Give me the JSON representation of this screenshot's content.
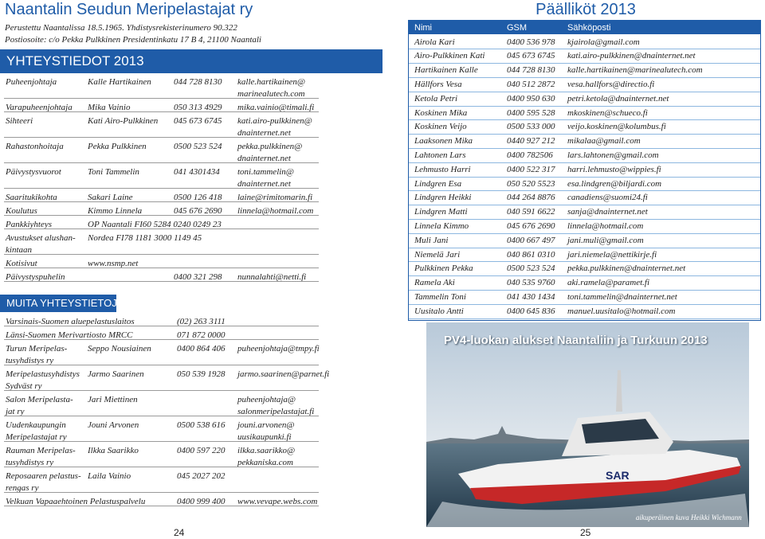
{
  "left": {
    "title": "Naantalin Seudun Meripelastajat ry",
    "founded": "Perustettu Naantalissa 18.5.1965. Yhdistysrekisterinumero 90.322",
    "address": "Postiosoite: c/o Pekka Pulkkinen Presidentinkatu 17 B 4, 21100 Naantali",
    "section_title": "YHTEYSTIEDOT 2013",
    "contacts": [
      {
        "role": [
          "Puheenjohtaja"
        ],
        "name": [
          "Kalle Hartikainen"
        ],
        "phone": [
          "044 728 8130"
        ],
        "email": [
          "kalle.hartikainen@",
          "marinealutech.com"
        ]
      },
      {
        "role": [
          "Varapuheenjohtaja"
        ],
        "name": [
          "Mika Vainio"
        ],
        "phone": [
          "050 313 4929"
        ],
        "email": [
          "mika.vainio@timali.fi"
        ]
      },
      {
        "role": [
          "Sihteeri"
        ],
        "name": [
          "Kati Airo-Pulkkinen"
        ],
        "phone": [
          "045 673 6745"
        ],
        "email": [
          "kati.airo-pulkkinen@",
          "dnainternet.net"
        ]
      },
      {
        "role": [
          "Rahastonhoitaja"
        ],
        "name": [
          "Pekka Pulkkinen"
        ],
        "phone": [
          "0500 523 524"
        ],
        "email": [
          "pekka.pulkkinen@",
          "dnainternet.net"
        ]
      },
      {
        "role": [
          "Päivystysvuorot"
        ],
        "name": [
          "Toni Tammelin"
        ],
        "phone": [
          "041 4301434"
        ],
        "email": [
          "toni.tammelin@",
          "dnainternet.net"
        ]
      },
      {
        "role": [
          "Saaritukikohta"
        ],
        "name": [
          "Sakari Laine"
        ],
        "phone": [
          "0500 126 418"
        ],
        "email": [
          "laine@rimitomarin.fi"
        ]
      },
      {
        "role": [
          "Koulutus"
        ],
        "name": [
          "Kimmo Linnela"
        ],
        "phone": [
          "045 676 2690"
        ],
        "email": [
          "linnela@hotmail.com"
        ]
      },
      {
        "role": [
          "Pankkiyhteys"
        ],
        "name": [
          "OP Naantali  FI60 5284 0240 0249  23"
        ]
      },
      {
        "role": [
          "Avustukset alushan-",
          "kintaan"
        ],
        "name": [
          "Nordea FI78 1181 3000 1149 45"
        ]
      },
      {
        "role": [
          "Kotisivut"
        ],
        "name": [
          "www.nsmp.net"
        ]
      },
      {
        "role": [
          "Päivystyspuhelin"
        ],
        "phone": [
          "0400 321 298"
        ],
        "email": [
          "nunnalahti@netti.fi"
        ]
      }
    ],
    "other_title": "MUITA YHTEYSTIETOJA",
    "others": [
      {
        "role": [
          "Varsinais-Suomen aluepelastuslaitos"
        ],
        "phone": [
          "(02) 263 3111"
        ]
      },
      {
        "role": [
          "Länsi-Suomen Merivartiosto MRCC"
        ],
        "phone": [
          "071 872 0000"
        ]
      },
      {
        "role": [
          "Turun Meripelas-",
          "tusyhdistys ry"
        ],
        "name": [
          "Seppo Nousiainen"
        ],
        "phone": [
          "0400 864 406"
        ],
        "email": [
          "puheenjohtaja@tmpy.fi"
        ]
      },
      {
        "role": [
          "Meripelastusyhdistys",
          "Sydväst ry"
        ],
        "name": [
          "Jarmo Saarinen"
        ],
        "phone": [
          "050 539 1928"
        ],
        "email": [
          "jarmo.saarinen@parnet.fi"
        ]
      },
      {
        "role": [
          "Salon Meripelasta-",
          "jat ry"
        ],
        "name": [
          "Jari Miettinen"
        ],
        "email": [
          "puheenjohtaja@",
          "salonmeripelastajat.fi"
        ]
      },
      {
        "role": [
          "Uudenkaupungin",
          "Meripelastajat ry"
        ],
        "name": [
          "Jouni Arvonen"
        ],
        "phone": [
          "0500 538 616"
        ],
        "email": [
          "jouni.arvonen@",
          "uusikaupunki.fi"
        ]
      },
      {
        "role": [
          "Rauman Meripelas-",
          "tusyhdistys ry"
        ],
        "name": [
          "Ilkka Saarikko"
        ],
        "phone": [
          "0400 597 220"
        ],
        "email": [
          "ilkka.saarikko@",
          "pekkaniska.com"
        ]
      },
      {
        "role": [
          "Reposaaren pelastus-",
          "rengas ry"
        ],
        "name": [
          "Laila Vainio"
        ],
        "phone": [
          "045 2027 202"
        ]
      },
      {
        "role": [
          "Velkuan Vapaaehtoinen Pelastuspalvelu"
        ],
        "phone": [
          "0400 999 400"
        ],
        "email": [
          "www.vevape.webs.com"
        ]
      }
    ],
    "page_number": "24"
  },
  "right": {
    "title": "Päälliköt 2013",
    "table": {
      "header": [
        "Nimi",
        "GSM",
        "Sähköposti"
      ],
      "rows": [
        [
          "Airola Kari",
          "0400 536 978",
          "kjairola@gmail.com"
        ],
        [
          "Airo-Pulkkinen Kati",
          "045 673 6745",
          "kati.airo-pulkkinen@dnainternet.net"
        ],
        [
          "Hartikainen Kalle",
          "044 728 8130",
          "kalle.hartikainen@marinealutech.com"
        ],
        [
          "Hällfors Vesa",
          "040 512 2872",
          "vesa.hallfors@directio.fi"
        ],
        [
          "Ketola Petri",
          "0400 950 630",
          "petri.ketola@dnainternet.net"
        ],
        [
          "Koskinen Mika",
          "0400 595 528",
          "mkoskinen@schueco.fi"
        ],
        [
          "Koskinen Veijo",
          "0500 533 000",
          "veijo.koskinen@kolumbus.fi"
        ],
        [
          "Laaksonen Mika",
          "0440 927 212",
          "mikalaa@gmail.com"
        ],
        [
          "Lahtonen Lars",
          "0400 782506",
          "lars.lahtonen@gmail.com"
        ],
        [
          "Lehmusto Harri",
          "0400 522 317",
          "harri.lehmusto@wippies.fi"
        ],
        [
          "Lindgren Esa",
          "050 520 5523",
          "esa.lindgren@biljardi.com"
        ],
        [
          "Lindgren Heikki",
          "044 264 8876",
          "canadiens@suomi24.fi"
        ],
        [
          "Lindgren Matti",
          "040 591 6622",
          "sanja@dnainternet.net"
        ],
        [
          "Linnela Kimmo",
          "045 676 2690",
          "linnela@hotmail.com"
        ],
        [
          "Muli Jani",
          "0400 667 497",
          "jani.muli@gmail.com"
        ],
        [
          "Niemelä Jari",
          "040 861 0310",
          "jari.niemela@nettikirje.fi"
        ],
        [
          "Pulkkinen Pekka",
          "0500 523 524",
          "pekka.pulkkinen@dnainternet.net"
        ],
        [
          "Ramela Aki",
          "040 535 9760",
          "aki.ramela@paramet.fi"
        ],
        [
          "Tammelin Toni",
          "041 430 1434",
          "toni.tammelin@dnainternet.net"
        ],
        [
          "Uusitalo Antti",
          "0400 645 836",
          "manuel.uusitalo@hotmail.com"
        ]
      ]
    },
    "photo": {
      "caption": "PV4-luokan alukset Naantaliin ja Turkuun 2013",
      "hull_text": "SAR",
      "credit": "aikuperäinen kuva Heikki Wichmann"
    },
    "page_number": "25"
  }
}
